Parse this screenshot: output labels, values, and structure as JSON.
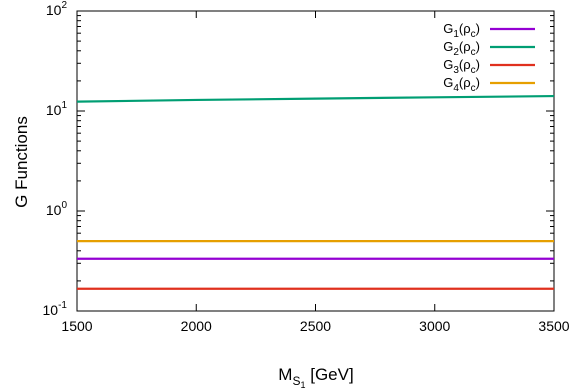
{
  "chart_data": {
    "type": "line",
    "xlabel": {
      "base": "M",
      "sub": "S",
      "subsub": "1",
      "rest": " [GeV]"
    },
    "ylabel": "G Functions",
    "xlim": [
      1500,
      3500
    ],
    "ylim": [
      0.1,
      100
    ],
    "yscale": "log",
    "grid": false,
    "legend_position": "top-right",
    "x_ticks": [
      "1500",
      "2000",
      "2500",
      "3000",
      "3500"
    ],
    "x_tick_values": [
      1500,
      2000,
      2500,
      3000,
      3500
    ],
    "y_ticks": [
      {
        "value": 0.1,
        "base": "10",
        "exp": "-1"
      },
      {
        "value": 1,
        "base": "10",
        "exp": "0"
      },
      {
        "value": 10,
        "base": "10",
        "exp": "1"
      },
      {
        "value": 100,
        "base": "10",
        "exp": "2"
      }
    ],
    "series": [
      {
        "name": "G1(ρc)",
        "label_parts": {
          "g": "G",
          "i": "1",
          "rho": "(ρ",
          "c": "c",
          "close": ")"
        },
        "color": "#9400d3",
        "x": [
          1500,
          3500
        ],
        "y": [
          0.333,
          0.333
        ]
      },
      {
        "name": "G2(ρc)",
        "label_parts": {
          "g": "G",
          "i": "2",
          "rho": "(ρ",
          "c": "c",
          "close": ")"
        },
        "color": "#009e73",
        "x": [
          1500,
          2000,
          2500,
          3000,
          3500
        ],
        "y": [
          12.4,
          12.9,
          13.3,
          13.7,
          14.1
        ]
      },
      {
        "name": "G3(ρc)",
        "label_parts": {
          "g": "G",
          "i": "3",
          "rho": "(ρ",
          "c": "c",
          "close": ")"
        },
        "color": "#e0301e",
        "x": [
          1500,
          3500
        ],
        "y": [
          0.167,
          0.167
        ]
      },
      {
        "name": "G4(ρc)",
        "label_parts": {
          "g": "G",
          "i": "4",
          "rho": "(ρ",
          "c": "c",
          "close": ")"
        },
        "color": "#e69f00",
        "x": [
          1500,
          3500
        ],
        "y": [
          0.5,
          0.5
        ]
      }
    ]
  }
}
